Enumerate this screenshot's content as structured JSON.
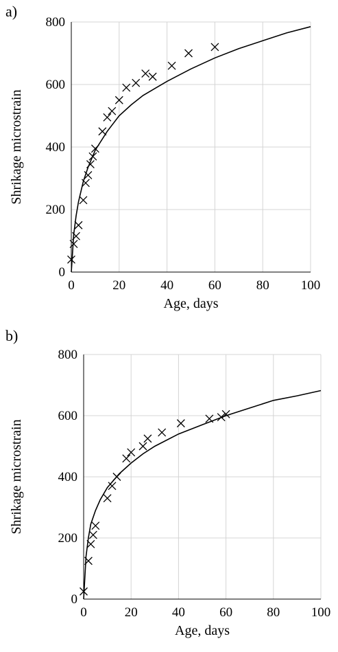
{
  "chart_data": [
    {
      "type": "scatter",
      "panel_label": "a)",
      "xlabel": "Age, days",
      "ylabel": "Shrikage microstrain",
      "xlim": [
        0,
        100
      ],
      "ylim": [
        0,
        800
      ],
      "xticks": [
        "0",
        "20",
        "40",
        "60",
        "80",
        "100"
      ],
      "yticks": [
        "0",
        "200",
        "400",
        "600",
        "800"
      ],
      "grid": true,
      "series": [
        {
          "kind": "markers",
          "marker": "x",
          "points": [
            [
              0,
              40
            ],
            [
              1,
              90
            ],
            [
              2,
              115
            ],
            [
              3,
              150
            ],
            [
              5,
              230
            ],
            [
              6,
              285
            ],
            [
              7,
              310
            ],
            [
              8,
              345
            ],
            [
              9,
              370
            ],
            [
              10,
              395
            ],
            [
              13,
              450
            ],
            [
              15,
              495
            ],
            [
              17,
              515
            ],
            [
              20,
              550
            ],
            [
              23,
              590
            ],
            [
              27,
              605
            ],
            [
              31,
              635
            ],
            [
              34,
              625
            ],
            [
              42,
              660
            ],
            [
              49,
              700
            ],
            [
              60,
              720
            ]
          ]
        },
        {
          "kind": "fitted-line",
          "points": [
            [
              0,
              0
            ],
            [
              1,
              120
            ],
            [
              2,
              180
            ],
            [
              3,
              225
            ],
            [
              5,
              290
            ],
            [
              7,
              335
            ],
            [
              10,
              390
            ],
            [
              15,
              450
            ],
            [
              20,
              500
            ],
            [
              25,
              535
            ],
            [
              30,
              565
            ],
            [
              40,
              610
            ],
            [
              50,
              650
            ],
            [
              60,
              685
            ],
            [
              70,
              715
            ],
            [
              80,
              740
            ],
            [
              90,
              765
            ],
            [
              100,
              785
            ]
          ]
        }
      ]
    },
    {
      "type": "scatter",
      "panel_label": "b)",
      "xlabel": "Age, days",
      "ylabel": "Shrikage microstrain",
      "xlim": [
        0,
        100
      ],
      "ylim": [
        0,
        800
      ],
      "xticks": [
        "0",
        "20",
        "40",
        "60",
        "80",
        "100"
      ],
      "yticks": [
        "0",
        "200",
        "400",
        "600",
        "800"
      ],
      "grid": true,
      "series": [
        {
          "kind": "markers",
          "marker": "x",
          "points": [
            [
              0,
              25
            ],
            [
              2,
              125
            ],
            [
              3,
              180
            ],
            [
              4,
              210
            ],
            [
              5,
              240
            ],
            [
              10,
              330
            ],
            [
              12,
              370
            ],
            [
              14,
              400
            ],
            [
              18,
              460
            ],
            [
              20,
              480
            ],
            [
              25,
              500
            ],
            [
              27,
              525
            ],
            [
              33,
              545
            ],
            [
              41,
              575
            ],
            [
              53,
              590
            ],
            [
              58,
              595
            ],
            [
              60,
              605
            ]
          ]
        },
        {
          "kind": "fitted-line",
          "points": [
            [
              0,
              0
            ],
            [
              1,
              140
            ],
            [
              2,
              200
            ],
            [
              3,
              245
            ],
            [
              5,
              290
            ],
            [
              7,
              325
            ],
            [
              10,
              365
            ],
            [
              15,
              410
            ],
            [
              20,
              445
            ],
            [
              25,
              475
            ],
            [
              30,
              500
            ],
            [
              40,
              540
            ],
            [
              50,
              570
            ],
            [
              60,
              600
            ],
            [
              70,
              625
            ],
            [
              80,
              650
            ],
            [
              90,
              665
            ],
            [
              100,
              682
            ]
          ]
        }
      ]
    }
  ]
}
